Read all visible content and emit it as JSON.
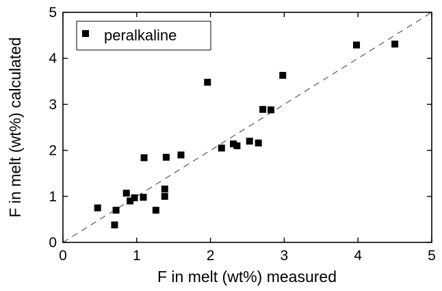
{
  "chart_data": {
    "type": "scatter",
    "xlabel": "F in melt (wt%) measured",
    "ylabel": "F in melt (wt%) calculated",
    "xlim": [
      0,
      5
    ],
    "ylim": [
      0,
      5
    ],
    "xticks": [
      "0",
      "1",
      "2",
      "3",
      "4",
      "5"
    ],
    "yticks": [
      "0",
      "1",
      "2",
      "3",
      "4",
      "5"
    ],
    "grid": false,
    "legend_position": "top-left",
    "reference_line": {
      "type": "y=x",
      "style": "dashed",
      "color": "#555555"
    },
    "series": [
      {
        "name": "peralkaline",
        "marker": "square",
        "color": "#000000",
        "points": [
          [
            0.47,
            0.75
          ],
          [
            0.7,
            0.38
          ],
          [
            0.72,
            0.7
          ],
          [
            0.86,
            1.07
          ],
          [
            0.91,
            0.9
          ],
          [
            0.97,
            0.97
          ],
          [
            1.09,
            0.98
          ],
          [
            1.1,
            1.84
          ],
          [
            1.26,
            0.7
          ],
          [
            1.38,
            1.16
          ],
          [
            1.38,
            1.0
          ],
          [
            1.4,
            1.85
          ],
          [
            1.6,
            1.9
          ],
          [
            1.96,
            3.48
          ],
          [
            2.15,
            2.05
          ],
          [
            2.31,
            2.14
          ],
          [
            2.36,
            2.1
          ],
          [
            2.53,
            2.2
          ],
          [
            2.65,
            2.16
          ],
          [
            2.71,
            2.89
          ],
          [
            2.82,
            2.88
          ],
          [
            2.98,
            3.63
          ],
          [
            3.98,
            4.29
          ],
          [
            4.5,
            4.31
          ]
        ]
      }
    ]
  }
}
